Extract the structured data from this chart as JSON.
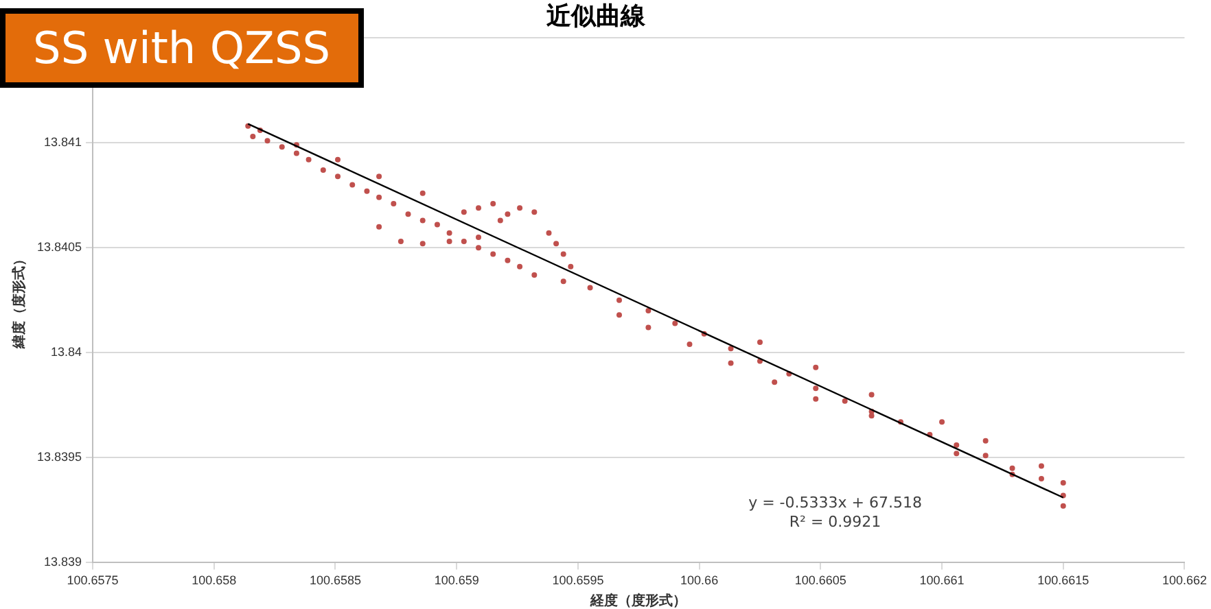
{
  "chart_data": {
    "type": "scatter",
    "title": "近似曲線",
    "xlabel": "経度（度形式）",
    "ylabel": "緯度（度形式）",
    "annotations": [
      "SS with QZSS",
      "y = -0.5333x + 67.518",
      "R² = 0.9921"
    ],
    "xlim": [
      100.6575,
      100.662
    ],
    "xticks": [
      100.6575,
      100.658,
      100.6585,
      100.659,
      100.6595,
      100.66,
      100.6605,
      100.661,
      100.6615,
      100.662
    ],
    "ylim": [
      13.839,
      13.8415
    ],
    "yticks": [
      13.839,
      13.8395,
      13.84,
      13.8405,
      13.841,
      {
        "value": 13.8415,
        "label": null
      }
    ],
    "grid": "y",
    "legend": false,
    "marker": "circle",
    "series": [
      {
        "color": "#c0504d",
        "x": [
          100.65814,
          100.65816,
          100.65822,
          100.65828,
          100.65834,
          100.65839,
          100.65845,
          100.65851,
          100.65857,
          100.65863,
          100.65868,
          100.65874,
          100.6588,
          100.65886,
          100.65892,
          100.65897,
          100.65903,
          100.65909,
          100.65915,
          100.65921,
          100.65926,
          100.65819,
          100.65834,
          100.65851,
          100.65868,
          100.65886,
          100.65903,
          100.65918,
          100.65909,
          100.65915,
          100.65921,
          100.65926,
          100.65932,
          100.65938,
          100.65941,
          100.65944,
          100.65947,
          100.65868,
          100.65877,
          100.65886,
          100.65897,
          100.65909,
          100.65932,
          100.65944,
          100.65955,
          100.65967,
          100.65979,
          100.6599,
          100.66002,
          100.66013,
          100.66025,
          100.66037,
          100.66048,
          100.6606,
          100.66071,
          100.66083,
          100.66095,
          100.66106,
          100.66118,
          100.66129,
          100.66141,
          100.6615,
          100.65967,
          100.65979,
          100.65996,
          100.66013,
          100.66031,
          100.66048,
          100.66071,
          100.66106,
          100.66129,
          100.6615,
          100.66025,
          100.66048,
          100.66071,
          100.661,
          100.66118,
          100.66141,
          100.6615
        ],
        "values": [
          13.84108,
          13.84103,
          13.84101,
          13.84098,
          13.84095,
          13.84092,
          13.84087,
          13.84084,
          13.8408,
          13.84077,
          13.84074,
          13.84071,
          13.84066,
          13.84063,
          13.84061,
          13.84057,
          13.84053,
          13.8405,
          13.84047,
          13.84044,
          13.84041,
          13.84106,
          13.84099,
          13.84092,
          13.84084,
          13.84076,
          13.84067,
          13.84063,
          13.84069,
          13.84071,
          13.84066,
          13.84069,
          13.84067,
          13.84057,
          13.84052,
          13.84047,
          13.84041,
          13.8406,
          13.84053,
          13.84052,
          13.84053,
          13.84055,
          13.84037,
          13.84034,
          13.84031,
          13.84025,
          13.8402,
          13.84014,
          13.84009,
          13.84002,
          13.83996,
          13.8399,
          13.83983,
          13.83977,
          13.83972,
          13.83967,
          13.83961,
          13.83956,
          13.83951,
          13.83945,
          13.8394,
          13.83932,
          13.84018,
          13.84012,
          13.84004,
          13.83995,
          13.83986,
          13.83978,
          13.8397,
          13.83952,
          13.83942,
          13.83927,
          13.84005,
          13.83993,
          13.8398,
          13.83967,
          13.83958,
          13.83946,
          13.83938
        ]
      },
      {
        "type": "line",
        "color": "#000000",
        "marker": "none",
        "line_style": "solid",
        "x": [
          100.65814,
          100.6615
        ],
        "values": [
          13.84109,
          13.83931
        ]
      }
    ]
  }
}
